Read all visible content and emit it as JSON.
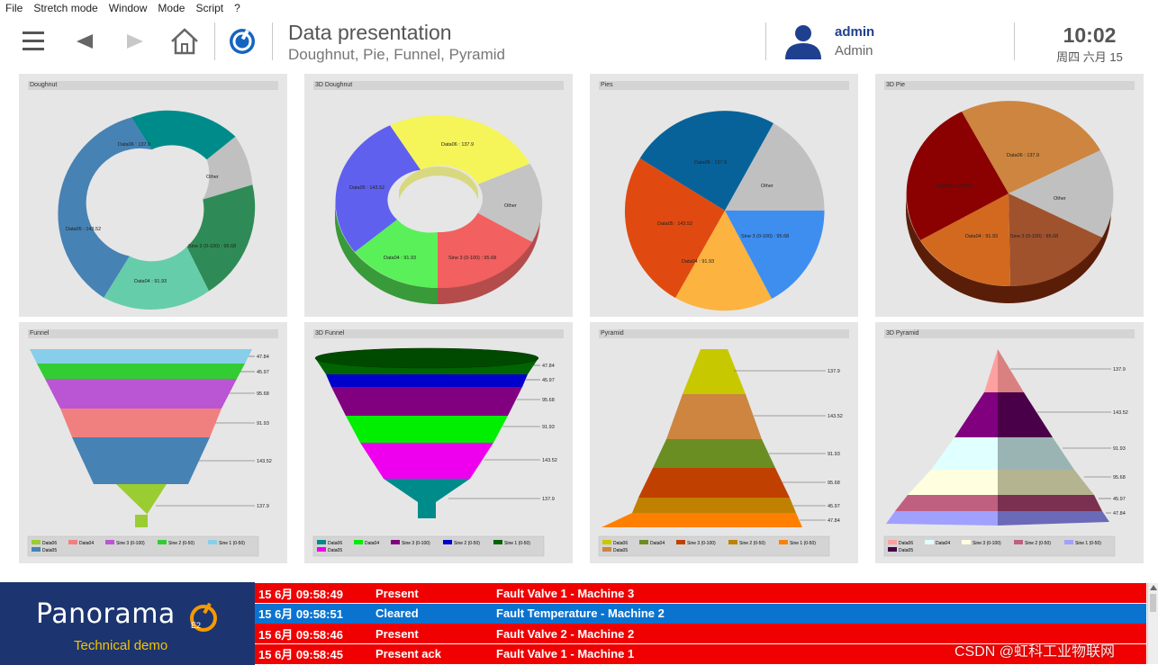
{
  "menu": [
    "File",
    "Stretch mode",
    "Window",
    "Mode",
    "Script",
    "?"
  ],
  "header": {
    "title": "Data presentation",
    "subtitle": "Doughnut, Pie, Funnel, Pyramid",
    "user_name": "admin",
    "user_role": "Admin",
    "time": "10:02",
    "date": "周四 六月 15"
  },
  "panels": {
    "doughnut": "Doughnut",
    "doughnut3d": "3D Doughnut",
    "pies": "Pies",
    "pie3d": "3D Pie",
    "funnel": "Funnel",
    "funnel3d": "3D Funnel",
    "pyramid": "Pyramid",
    "pyramid3d": "3D Pyramid"
  },
  "pie_labels": [
    "Data06 : 137.9",
    "Other",
    "Sine 3 (0-100) : 95.68",
    "Data04 : 91.93",
    "Data05 : 143.52"
  ],
  "funnel_values": [
    "47.84",
    "45.97",
    "95.68",
    "91.93",
    "143.52",
    "137.9"
  ],
  "pyramid_values": [
    "137.9",
    "143.52",
    "91.93",
    "95.68",
    "45.97",
    "47.84"
  ],
  "legend_items": [
    "Data06",
    "Data04",
    "Sine 3 (0-100)",
    "Sine 2 (0-50)",
    "Sine 1 (0-50)",
    "Data05"
  ],
  "colors": {
    "doughnut": [
      "#008B8B",
      "#C0C0C0",
      "#2E8B57",
      "#66CDAA",
      "#4682B4"
    ],
    "doughnut3d": [
      "#F5F55A",
      "#C4C4C4",
      "#F26060",
      "#5AF05A",
      "#6060EE"
    ],
    "pies": [
      "#08629A",
      "#C0C0C0",
      "#3E8EF0",
      "#FCB340",
      "#E04A10"
    ],
    "pie3d": [
      "#CD853F",
      "#C0C0C0",
      "#A0522D",
      "#D2691E",
      "#8B0000"
    ],
    "funnel": [
      "#87CEEB",
      "#32CD32",
      "#BA55D3",
      "#F08080",
      "#4682B4",
      "#9ACD32"
    ],
    "funnel3d": [
      "#006400",
      "#0000CD",
      "#800080",
      "#00EE00",
      "#EE00EE",
      "#008B8B"
    ],
    "pyramid": [
      "#C8C800",
      "#CD853F",
      "#6B8E23",
      "#C04000",
      "#C08000",
      "#FF8000"
    ],
    "pyramid3d": [
      "#FFA0A0",
      "#800080",
      "#E0FFFF",
      "#FFFFE0",
      "#C06080",
      "#A0A0FF"
    ],
    "accent": "#1f3f8f"
  },
  "alarms": [
    {
      "time": "15 6月 09:58:49",
      "state": "Present",
      "text": "Fault Valve 1 - Machine 3",
      "color": "#f00000"
    },
    {
      "time": "15 6月 09:58:51",
      "state": "Cleared",
      "text": "Fault Temperature - Machine 2",
      "color": "#0a73d0"
    },
    {
      "time": "15 6月 09:58:46",
      "state": "Present",
      "text": "Fault Valve 2 - Machine 2",
      "color": "#f00000"
    },
    {
      "time": "15 6月 09:58:45",
      "state": "Present ack",
      "text": "Fault Valve 1 - Machine 1",
      "color": "#f00000"
    }
  ],
  "logo": {
    "name": "Panorama",
    "tag": "E2",
    "subtitle": "Technical demo"
  },
  "watermark": "CSDN @虹科工业物联网"
}
